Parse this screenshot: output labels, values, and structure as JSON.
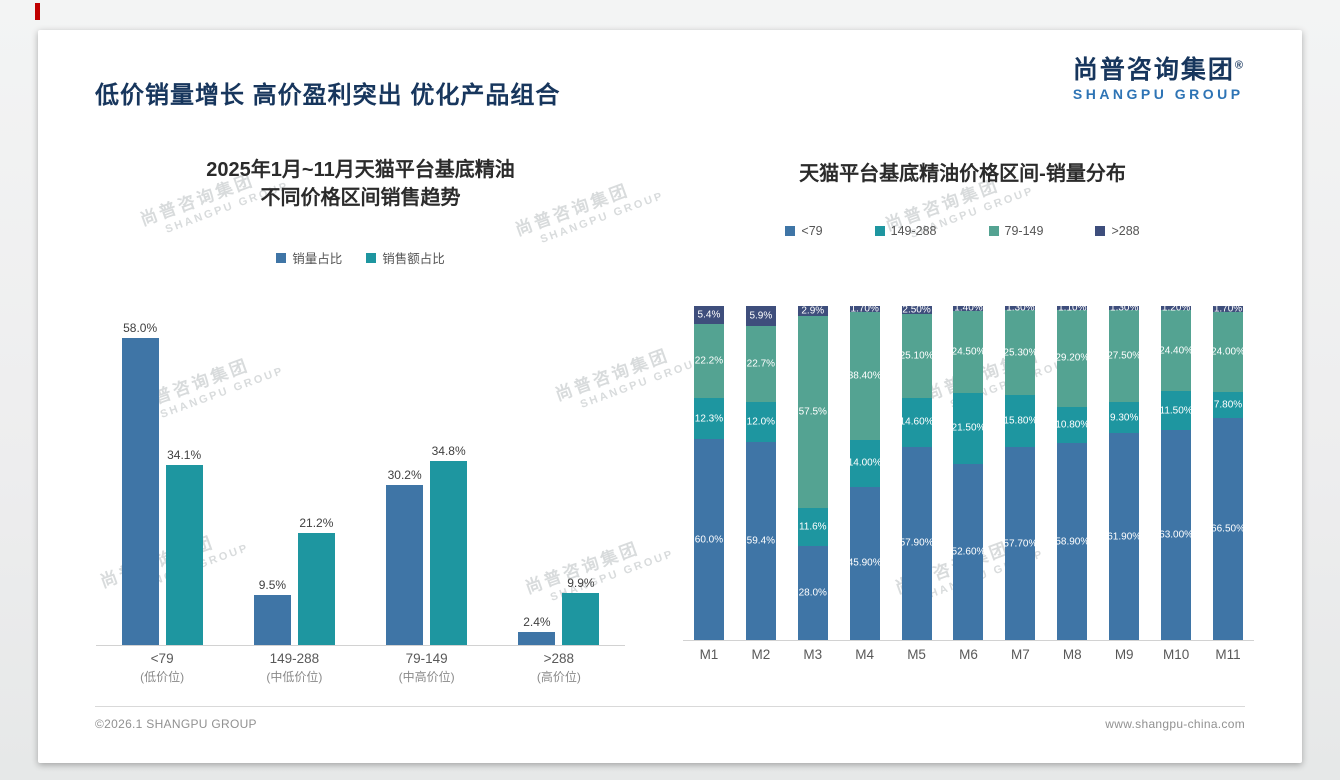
{
  "page": {
    "accent_red": "#c00000",
    "footer_left": "©2026.1 SHANGPU GROUP",
    "footer_right": "www.shangpu-china.com"
  },
  "header": {
    "title": "低价销量增长 高价盈利突出 优化产品组合",
    "logo_cn": "尚普咨询集团",
    "logo_reg": "®",
    "logo_en": "SHANGPU GROUP"
  },
  "watermark": {
    "line1": "尚普咨询集团",
    "line2": "SHANGPU GROUP"
  },
  "chart_data": [
    {
      "type": "bar",
      "title": "2025年1月~11月天猫平台基底精油",
      "title_line2": "不同价格区间销售趋势",
      "categories": [
        "<79",
        "149-288",
        "79-149",
        ">288"
      ],
      "category_sublabels": [
        "(低价位)",
        "(中低价位)",
        "(中高价位)",
        "(高价位)"
      ],
      "series": [
        {
          "name": "销量占比",
          "color": "#3f75a6",
          "values": [
            58.0,
            9.5,
            30.2,
            2.4
          ],
          "labels": [
            "58.0%",
            "9.5%",
            "30.2%",
            "2.4%"
          ]
        },
        {
          "name": "销售额占比",
          "color": "#1e96a0",
          "values": [
            34.1,
            21.2,
            34.8,
            9.9
          ],
          "labels": [
            "34.1%",
            "21.2%",
            "34.8%",
            "9.9%"
          ]
        }
      ],
      "ylim": [
        0,
        62
      ],
      "grid": false,
      "legend_position": "top",
      "value_labels": "outside-top"
    },
    {
      "type": "stacked-bar",
      "title": "天猫平台基底精油价格区间-销量分布",
      "categories": [
        "M1",
        "M2",
        "M3",
        "M4",
        "M5",
        "M6",
        "M7",
        "M8",
        "M9",
        "M10",
        "M11"
      ],
      "series": [
        {
          "name": "<79",
          "color": "#3f75a6",
          "values": [
            60.0,
            59.4,
            28.0,
            45.9,
            57.9,
            52.6,
            57.7,
            58.9,
            61.9,
            63.0,
            66.5
          ],
          "labels": [
            "60.0%",
            "59.4%",
            "28.0%",
            "45.90%",
            "57.90%",
            "52.60%",
            "57.70%",
            "58.90%",
            "61.90%",
            "63.00%",
            "66.50%"
          ]
        },
        {
          "name": "149-288",
          "color": "#1e96a0",
          "values": [
            12.3,
            12.0,
            11.6,
            14.0,
            14.6,
            21.5,
            15.8,
            10.8,
            9.3,
            11.5,
            7.8
          ],
          "labels": [
            "12.3%",
            "12.0%",
            "11.6%",
            "14.00%",
            "14.60%",
            "21.50%",
            "15.80%",
            "10.80%",
            "9.30%",
            "11.50%",
            "7.80%"
          ]
        },
        {
          "name": "79-149",
          "color": "#54a392",
          "values": [
            22.2,
            22.7,
            57.5,
            38.4,
            25.1,
            24.5,
            25.3,
            29.2,
            27.5,
            24.4,
            24.0
          ],
          "labels": [
            "22.2%",
            "22.7%",
            "57.5%",
            "38.40%",
            "25.10%",
            "24.50%",
            "25.30%",
            "29.20%",
            "27.50%",
            "24.40%",
            "24.00%"
          ]
        },
        {
          "name": ">288",
          "color": "#3e4e7c",
          "values": [
            5.4,
            5.9,
            2.9,
            1.7,
            2.5,
            1.4,
            1.3,
            1.1,
            1.3,
            1.2,
            1.7
          ],
          "labels": [
            "5.4%",
            "5.9%",
            "2.9%",
            "1.70%",
            "2.50%",
            "1.40%",
            "1.30%",
            "1.10%",
            "1.30%",
            "1.20%",
            "1.70%"
          ]
        }
      ],
      "ylim": [
        0,
        100
      ],
      "grid": false,
      "legend_position": "top",
      "value_labels": "inside"
    }
  ]
}
